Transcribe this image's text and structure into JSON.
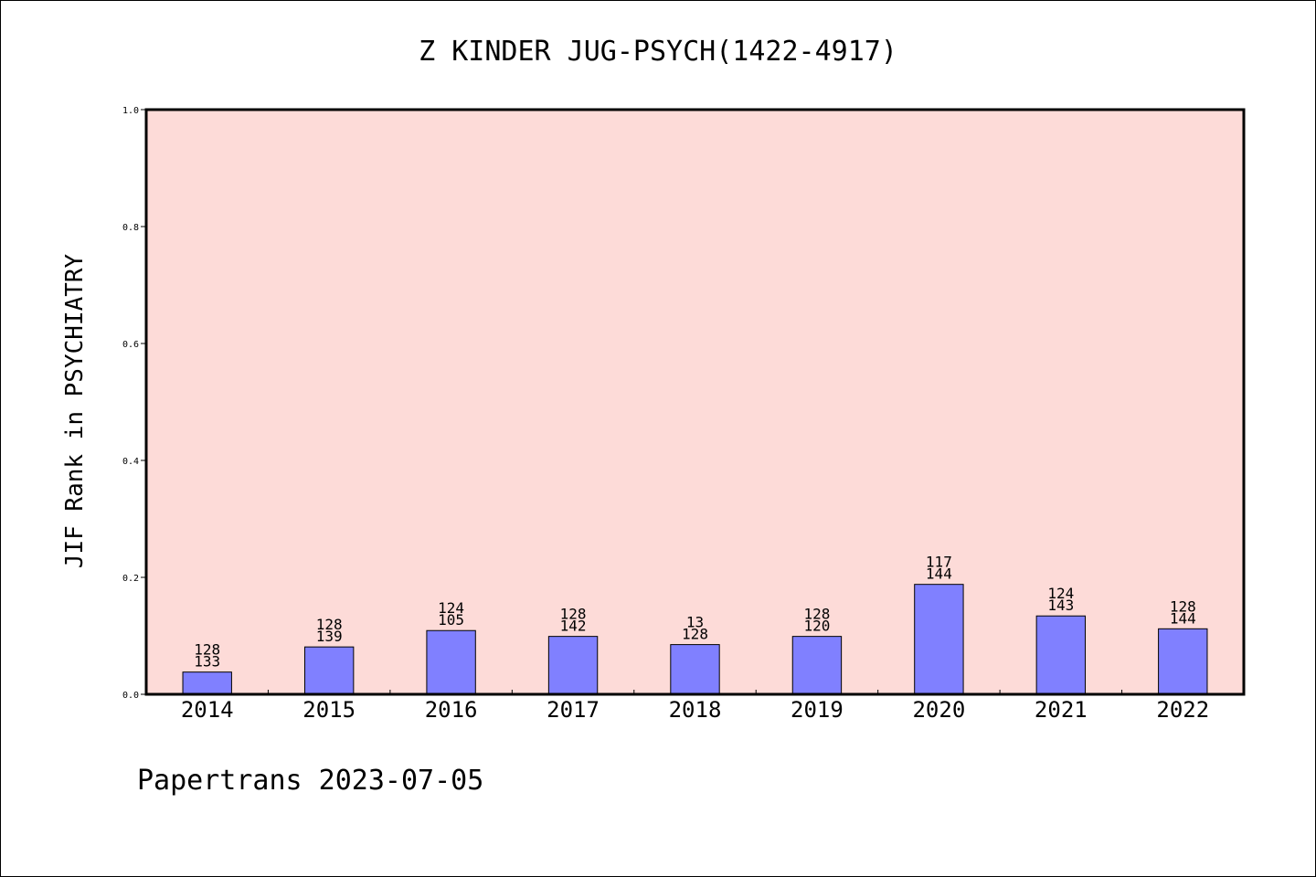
{
  "chart_data": {
    "type": "bar",
    "title": "Z KINDER JUG-PSYCH(1422-4917)",
    "xlabel": "",
    "ylabel": "JIF Rank in PSYCHIATRY",
    "ylim": [
      0,
      1.0
    ],
    "yticks": [
      "0.0",
      "0.2",
      "0.4",
      "0.6",
      "0.8",
      "1.0"
    ],
    "categories": [
      "2014",
      "2015",
      "2016",
      "2017",
      "2018",
      "2019",
      "2020",
      "2021",
      "2022"
    ],
    "values": [
      0.038,
      0.081,
      0.109,
      0.099,
      0.085,
      0.099,
      0.188,
      0.134,
      0.112
    ],
    "label_top": [
      "128",
      "128",
      "124",
      "128",
      "13",
      "128",
      "117",
      "124",
      "128"
    ],
    "label_bottom": [
      "133",
      "139",
      "105",
      "142",
      "128",
      "120",
      "144",
      "143",
      "144"
    ],
    "grid": false,
    "legend": "none",
    "colors": {
      "plot_background": "#fddbd8",
      "bar_fill": "#8080ff",
      "bar_stroke": "#000000"
    }
  },
  "footer": "Papertrans 2023-07-05"
}
